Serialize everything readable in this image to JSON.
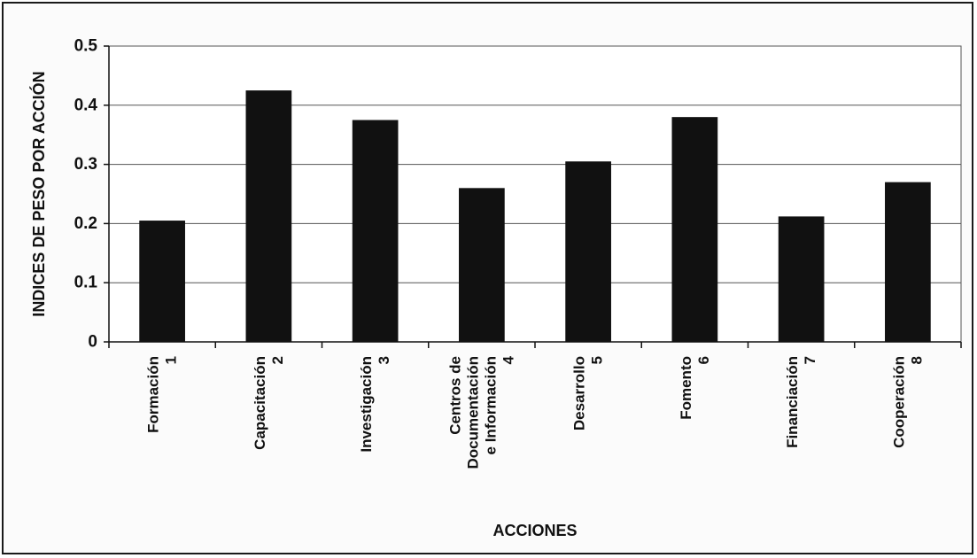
{
  "chart_data": {
    "type": "bar",
    "title": "",
    "xlabel": "ACCIONES",
    "ylabel": "INDICES DE PESO POR ACCIÓN",
    "ylim": [
      0,
      0.5
    ],
    "yticks": [
      "0",
      "0.1",
      "0.2",
      "0.3",
      "0.4",
      "0.5"
    ],
    "grid": true,
    "bar_color": "#111111",
    "categories": [
      [
        "Formación",
        "1"
      ],
      [
        "Capacitación",
        "2"
      ],
      [
        "Investigación",
        "3"
      ],
      [
        "Centros de",
        "Documentación",
        "e Información",
        "4"
      ],
      [
        "Desarrollo",
        "5"
      ],
      [
        "Fomento",
        "6"
      ],
      [
        "Financiación",
        "7"
      ],
      [
        "Cooperación",
        "8"
      ]
    ],
    "values": [
      0.205,
      0.425,
      0.375,
      0.26,
      0.305,
      0.38,
      0.212,
      0.27
    ]
  }
}
